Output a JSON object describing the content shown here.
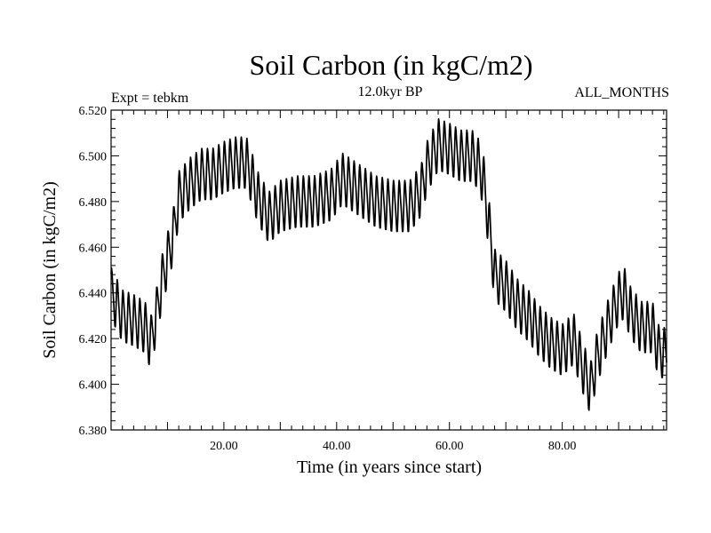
{
  "chart_data": {
    "type": "line",
    "title": "Soil Carbon (in kgC/m2)",
    "subtitle": "12.0kyr BP",
    "left_label": "Expt = tebkm",
    "right_label": "ALL_MONTHS",
    "xlabel": "Time (in years since start)",
    "ylabel": "Soil Carbon (in kgC/m2)",
    "xlim": [
      0.0,
      98.5
    ],
    "ylim": [
      6.38,
      6.52
    ],
    "x_ticks": [
      20,
      40,
      60,
      80
    ],
    "x_tick_labels": [
      "20.00",
      "40.00",
      "60.00",
      "80.00"
    ],
    "y_ticks": [
      6.38,
      6.4,
      6.42,
      6.44,
      6.46,
      6.48,
      6.5,
      6.52
    ],
    "y_tick_labels": [
      "6.380",
      "6.400",
      "6.420",
      "6.440",
      "6.460",
      "6.480",
      "6.500",
      "6.520"
    ],
    "line_color": "#000000",
    "series": [
      {
        "name": "Soil Carbon",
        "description": "Monthly series with strong annual cycle (amplitude about +/-0.01) superimposed on this slowly varying annual-mean baseline",
        "x": [
          0,
          2,
          4,
          6,
          7,
          8,
          9,
          10,
          11,
          12,
          14,
          16,
          18,
          20,
          22,
          24,
          25,
          26,
          28,
          30,
          33,
          36,
          39,
          41,
          44,
          47,
          50,
          53,
          55,
          56,
          58,
          60,
          62,
          64,
          65,
          66,
          67,
          68,
          70,
          72,
          74,
          76,
          78,
          80,
          82,
          84,
          85,
          86,
          88,
          90,
          91,
          92,
          94,
          96,
          97,
          98.5
        ],
        "values": [
          6.44,
          6.43,
          6.428,
          6.425,
          6.418,
          6.43,
          6.445,
          6.455,
          6.465,
          6.482,
          6.488,
          6.492,
          6.492,
          6.495,
          6.497,
          6.497,
          6.49,
          6.482,
          6.473,
          6.478,
          6.48,
          6.48,
          6.483,
          6.49,
          6.485,
          6.48,
          6.478,
          6.478,
          6.485,
          6.495,
          6.505,
          6.503,
          6.5,
          6.5,
          6.497,
          6.49,
          6.47,
          6.448,
          6.443,
          6.435,
          6.43,
          6.423,
          6.418,
          6.415,
          6.42,
          6.405,
          6.398,
          6.41,
          6.425,
          6.438,
          6.44,
          6.432,
          6.425,
          6.425,
          6.415,
          6.413
        ]
      }
    ]
  }
}
